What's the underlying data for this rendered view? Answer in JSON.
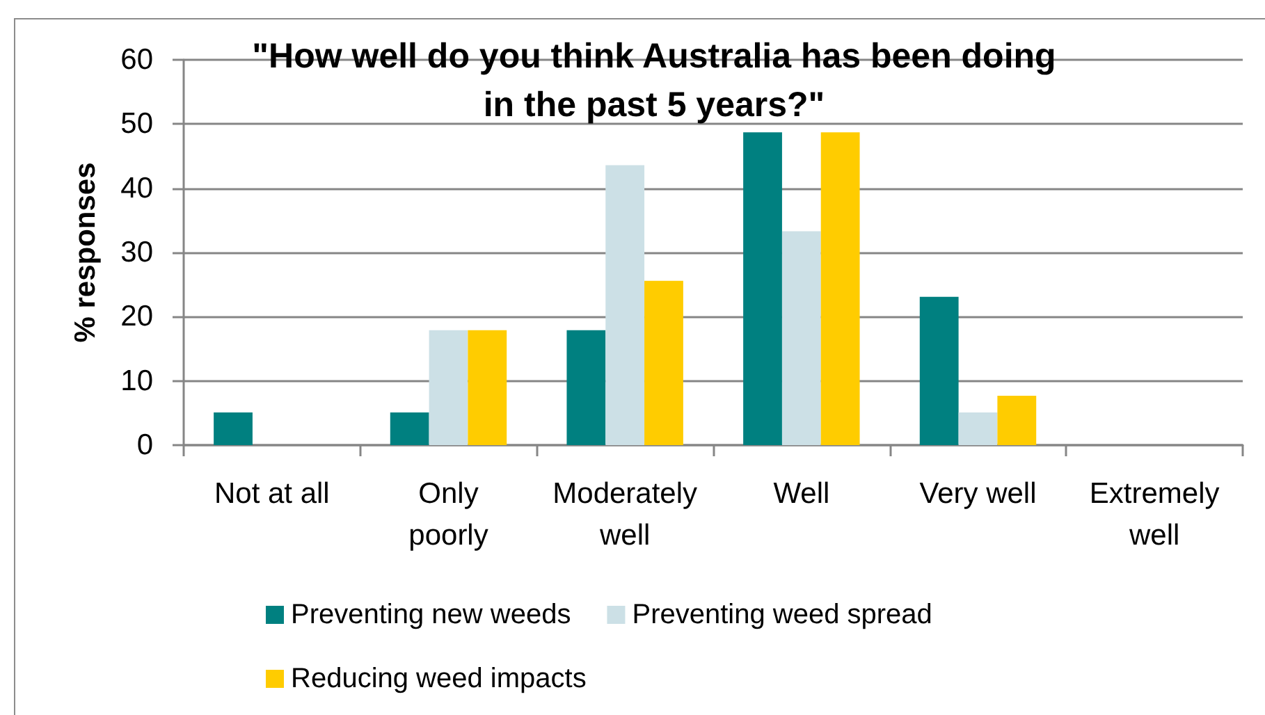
{
  "chart_data": {
    "type": "bar",
    "title": "\"How well do you think Australia has been doing in the past 5 years?\"",
    "ylabel": "% responses",
    "categories": [
      "Not at all",
      "Only poorly",
      "Moderately well",
      "Well",
      "Very well",
      "Extremely well"
    ],
    "series": [
      {
        "name": "Preventing new weeds",
        "color": "#008080",
        "values": [
          5.1,
          5.1,
          17.9,
          48.7,
          23.1,
          0
        ]
      },
      {
        "name": "Preventing weed spread",
        "color": "#cce0e6",
        "values": [
          0,
          17.9,
          43.6,
          33.3,
          5.1,
          0
        ]
      },
      {
        "name": "Reducing weed impacts",
        "color": "#ffcc00",
        "values": [
          0,
          17.9,
          25.6,
          48.7,
          7.7,
          0
        ]
      }
    ],
    "ylim": [
      0,
      60
    ],
    "yticks": [
      0,
      10,
      20,
      30,
      40,
      50,
      60
    ],
    "grid": "y",
    "legend": "bottom"
  }
}
